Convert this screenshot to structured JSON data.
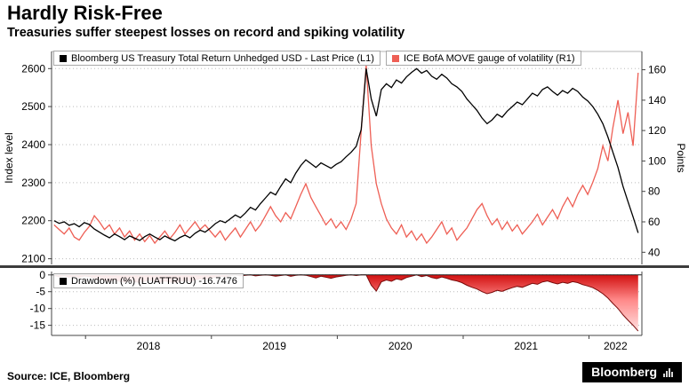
{
  "header": {
    "title": "Hardly Risk-Free",
    "subtitle": "Treasuries suffer steepest losses on record and spiking volatility"
  },
  "footer": {
    "source": "Source: ICE, Bloomberg",
    "logo_text": "Bloomberg"
  },
  "colors": {
    "treasury_line": "#000000",
    "move_line": "#ee5f55",
    "drawdown_line": "#7a0a0a",
    "drawdown_fill_top": "#cc0000",
    "drawdown_fill_mid": "#ff8a8a",
    "drawdown_fill_bottom": "#ffecec",
    "grid": "#bbbbbb",
    "axis": "#444444",
    "separator": "#3c3c3c"
  },
  "chart_data": {
    "type": "line",
    "x_axis": {
      "range": [
        2017.73,
        2022.42
      ],
      "ticks": [
        2018,
        2019,
        2020,
        2021,
        2022
      ],
      "labels": [
        "2018",
        "2019",
        "2020",
        "2021",
        "2022"
      ]
    },
    "panels": [
      {
        "name": "main",
        "left_axis": {
          "label": "Index level",
          "range": [
            2085,
            2645
          ],
          "ticks": [
            2100,
            2200,
            2300,
            2400,
            2500,
            2600
          ]
        },
        "right_axis": {
          "label": "Points",
          "range": [
            32,
            172
          ],
          "ticks": [
            40,
            60,
            80,
            100,
            120,
            140,
            160
          ]
        },
        "series": [
          {
            "name": "Bloomberg US Treasury Total Return Unhedged USD - Last Price (L1)",
            "axis": "left",
            "color": "#000000",
            "x_start": 2017.75,
            "x_step": 0.04,
            "values": [
              2200,
              2193,
              2197,
              2188,
              2192,
              2184,
              2195,
              2190,
              2178,
              2170,
              2162,
              2155,
              2165,
              2158,
              2150,
              2160,
              2154,
              2148,
              2158,
              2165,
              2157,
              2150,
              2160,
              2153,
              2147,
              2156,
              2162,
              2155,
              2167,
              2175,
              2170,
              2180,
              2192,
              2200,
              2195,
              2205,
              2215,
              2208,
              2220,
              2235,
              2228,
              2245,
              2260,
              2275,
              2268,
              2290,
              2310,
              2300,
              2325,
              2345,
              2360,
              2350,
              2340,
              2352,
              2345,
              2338,
              2348,
              2355,
              2368,
              2380,
              2395,
              2440,
              2600,
              2520,
              2475,
              2545,
              2560,
              2550,
              2570,
              2562,
              2578,
              2590,
              2600,
              2588,
              2595,
              2580,
              2572,
              2585,
              2575,
              2560,
              2552,
              2540,
              2520,
              2505,
              2490,
              2470,
              2455,
              2465,
              2480,
              2472,
              2488,
              2500,
              2512,
              2505,
              2520,
              2535,
              2528,
              2545,
              2552,
              2540,
              2530,
              2542,
              2535,
              2548,
              2540,
              2525,
              2515,
              2500,
              2480,
              2455,
              2420,
              2380,
              2340,
              2290,
              2250,
              2210,
              2168
            ]
          },
          {
            "name": "ICE BofA MOVE gauge of volatility (R1)",
            "axis": "right",
            "color": "#ee5f55",
            "x_start": 2017.75,
            "x_step": 0.04,
            "values": [
              58,
              55,
              52,
              56,
              50,
              48,
              53,
              57,
              64,
              60,
              55,
              58,
              52,
              56,
              50,
              54,
              48,
              52,
              47,
              51,
              46,
              50,
              54,
              49,
              53,
              58,
              52,
              56,
              60,
              55,
              58,
              54,
              50,
              54,
              48,
              52,
              56,
              50,
              55,
              60,
              54,
              58,
              64,
              70,
              64,
              60,
              66,
              62,
              70,
              78,
              85,
              76,
              70,
              64,
              58,
              62,
              56,
              60,
              55,
              62,
              72,
              120,
              163,
              110,
              85,
              72,
              62,
              56,
              52,
              58,
              50,
              54,
              48,
              52,
              46,
              50,
              55,
              60,
              52,
              56,
              48,
              52,
              56,
              62,
              68,
              72,
              64,
              58,
              62,
              55,
              60,
              54,
              58,
              52,
              56,
              60,
              65,
              58,
              63,
              68,
              62,
              70,
              76,
              70,
              78,
              84,
              78,
              86,
              95,
              110,
              100,
              122,
              140,
              118,
              132,
              110,
              158
            ]
          }
        ]
      },
      {
        "name": "drawdown",
        "legend_text": "Drawdown (%) (LUATTRUU) -16.7476",
        "axis": {
          "range": [
            -18,
            1
          ],
          "ticks": [
            0,
            -5,
            -10,
            -15
          ]
        },
        "series": [
          {
            "name": "Drawdown (%) (LUATTRUU)",
            "last_value": -16.7476,
            "color": "#7a0a0a",
            "legend_swatch_color": "#000000",
            "x_start": 2017.75,
            "x_step": 0.04,
            "values": [
              -0.2,
              -0.5,
              -0.3,
              -0.7,
              -0.4,
              -0.8,
              -0.3,
              -0.5,
              -1.0,
              -1.4,
              -1.7,
              -2.0,
              -1.6,
              -1.9,
              -2.2,
              -1.8,
              -2.0,
              -2.3,
              -1.9,
              -1.6,
              -1.9,
              -2.2,
              -1.8,
              -2.1,
              -2.4,
              -2.0,
              -1.7,
              -2.0,
              -1.5,
              -1.2,
              -1.4,
              -0.9,
              -0.7,
              -0.4,
              -0.6,
              -0.2,
              0,
              -0.3,
              -0.1,
              0,
              -0.3,
              -0.1,
              0,
              -0.1,
              -0.4,
              -0.2,
              0,
              -0.4,
              -0.1,
              0,
              -0.1,
              -0.5,
              -0.9,
              -0.4,
              -0.7,
              -1.0,
              -0.6,
              -0.4,
              -0.1,
              0,
              -0.2,
              0,
              0,
              -3.1,
              -4.8,
              -2.1,
              -1.5,
              -1.9,
              -1.2,
              -1.5,
              -0.8,
              -0.4,
              0,
              -0.5,
              -0.2,
              -0.8,
              -1.1,
              -0.6,
              -1.0,
              -1.5,
              -1.8,
              -2.3,
              -3.1,
              -3.7,
              -4.2,
              -5.0,
              -5.6,
              -5.2,
              -4.6,
              -4.9,
              -4.3,
              -3.8,
              -3.4,
              -3.7,
              -3.1,
              -2.5,
              -2.8,
              -2.1,
              -1.8,
              -2.3,
              -2.7,
              -2.2,
              -2.5,
              -2.0,
              -2.3,
              -2.9,
              -3.3,
              -3.8,
              -4.6,
              -5.6,
              -6.9,
              -8.5,
              -10.0,
              -11.9,
              -13.5,
              -15.0,
              -16.7
            ]
          }
        ]
      }
    ]
  }
}
